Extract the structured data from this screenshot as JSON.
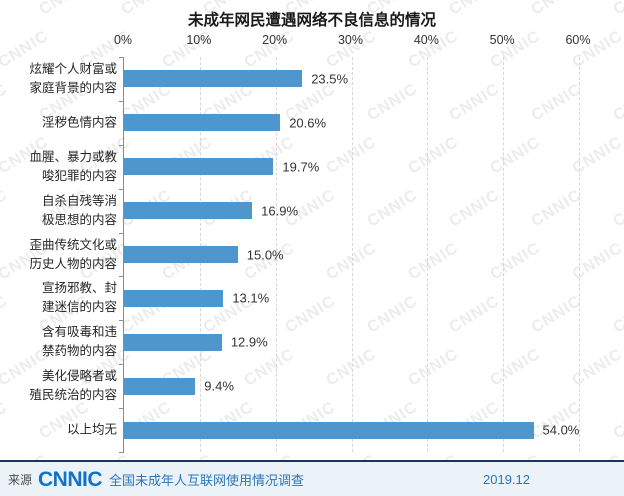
{
  "title": "未成年网民遭遇网络不良信息的情况",
  "chart_data": {
    "type": "bar",
    "orientation": "horizontal",
    "title": "未成年网民遭遇网络不良信息的情况",
    "categories": [
      [
        "炫耀个人财富或",
        "家庭背景的内容"
      ],
      [
        "淫秽色情内容"
      ],
      [
        "血腥、暴力或教",
        "唆犯罪的内容"
      ],
      [
        "自杀自残等消",
        "极思想的内容"
      ],
      [
        "歪曲传统文化或",
        "历史人物的内容"
      ],
      [
        "宣扬邪教、封",
        "建迷信的内容"
      ],
      [
        "含有吸毒和违",
        "禁药物的内容"
      ],
      [
        "美化侵略者或",
        "殖民统治的内容"
      ],
      [
        "以上均无"
      ]
    ],
    "values": [
      23.5,
      20.6,
      19.7,
      16.9,
      15.0,
      13.1,
      12.9,
      9.4,
      54.0
    ],
    "value_labels": [
      "23.5%",
      "20.6%",
      "19.7%",
      "16.9%",
      "15.0%",
      "13.1%",
      "12.9%",
      "9.4%",
      "54.0%"
    ],
    "x_ticks": [
      "0%",
      "10%",
      "20%",
      "30%",
      "40%",
      "50%",
      "60%"
    ],
    "xlim": [
      0,
      60
    ],
    "xlabel": "",
    "ylabel": "",
    "grid": "vertical-dashed",
    "legend": "none",
    "bar_color": "#4E96CE"
  },
  "footer": {
    "source_label": "来源",
    "logo": "CNNIC",
    "source_text": "全国未成年人互联网使用情况调查",
    "date": "2019.12"
  },
  "watermark": {
    "text": "CNNIC"
  }
}
